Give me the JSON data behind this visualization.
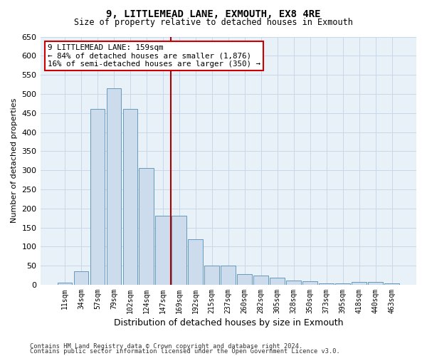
{
  "title": "9, LITTLEMEAD LANE, EXMOUTH, EX8 4RE",
  "subtitle": "Size of property relative to detached houses in Exmouth",
  "xlabel": "Distribution of detached houses by size in Exmouth",
  "ylabel": "Number of detached properties",
  "categories": [
    "11sqm",
    "34sqm",
    "57sqm",
    "79sqm",
    "102sqm",
    "124sqm",
    "147sqm",
    "169sqm",
    "192sqm",
    "215sqm",
    "237sqm",
    "260sqm",
    "282sqm",
    "305sqm",
    "328sqm",
    "350sqm",
    "373sqm",
    "395sqm",
    "418sqm",
    "440sqm",
    "463sqm"
  ],
  "values": [
    5,
    35,
    460,
    515,
    460,
    305,
    180,
    180,
    120,
    50,
    50,
    27,
    25,
    18,
    12,
    10,
    3,
    3,
    7,
    7,
    3
  ],
  "bar_color": "#ccdcec",
  "bar_edge_color": "#6699bb",
  "vline_color": "#aa0000",
  "annotation_line1": "9 LITTLEMEAD LANE: 159sqm",
  "annotation_line2": "← 84% of detached houses are smaller (1,876)",
  "annotation_line3": "16% of semi-detached houses are larger (350) →",
  "annotation_box_color": "#ffffff",
  "annotation_box_edge": "#cc0000",
  "grid_color": "#c8d8e8",
  "background_color": "#e8f0f8",
  "ylim": [
    0,
    650
  ],
  "yticks": [
    0,
    50,
    100,
    150,
    200,
    250,
    300,
    350,
    400,
    450,
    500,
    550,
    600,
    650
  ],
  "footer1": "Contains HM Land Registry data © Crown copyright and database right 2024.",
  "footer2": "Contains public sector information licensed under the Open Government Licence v3.0."
}
